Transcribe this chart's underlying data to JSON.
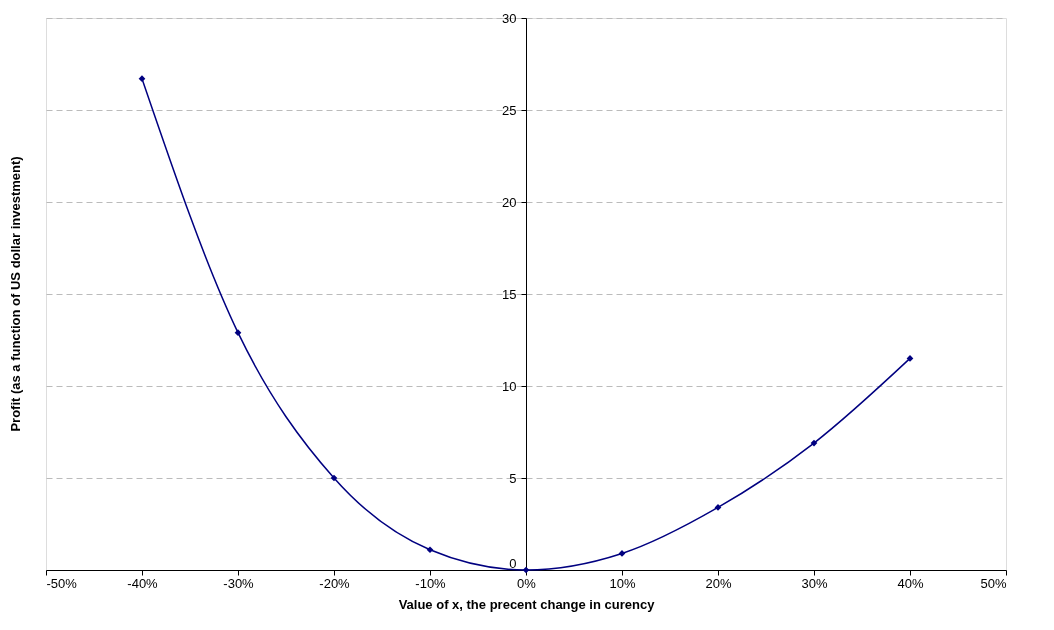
{
  "chart_data": {
    "type": "line",
    "xlabel": "Value of x, the precent change in curency",
    "ylabel": "Profit (as a function of US dollar investment)",
    "x": [
      -40,
      -30,
      -20,
      -10,
      0,
      10,
      20,
      30,
      40
    ],
    "series": [
      {
        "color": "#000080",
        "values": [
          26.7,
          12.9,
          5.0,
          1.1,
          0,
          0.9,
          3.4,
          6.9,
          11.5
        ]
      }
    ],
    "xlim": [
      -50,
      50
    ],
    "xticks": [
      {
        "value": -50,
        "label": "-50%"
      },
      {
        "value": -40,
        "label": "-40%"
      },
      {
        "value": -30,
        "label": "-30%"
      },
      {
        "value": -20,
        "label": "-20%"
      },
      {
        "value": -10,
        "label": "-10%"
      },
      {
        "value": 0,
        "label": "0%"
      },
      {
        "value": 10,
        "label": "10%"
      },
      {
        "value": 20,
        "label": "20%"
      },
      {
        "value": 30,
        "label": "30%"
      },
      {
        "value": 40,
        "label": "40%"
      },
      {
        "value": 50,
        "label": "50%"
      }
    ],
    "ylim": [
      0,
      30
    ],
    "yticks": [
      0,
      5,
      10,
      15,
      20,
      25,
      30
    ],
    "grid": "y",
    "marker": "diamond",
    "line_style": "solid",
    "legend": false
  }
}
